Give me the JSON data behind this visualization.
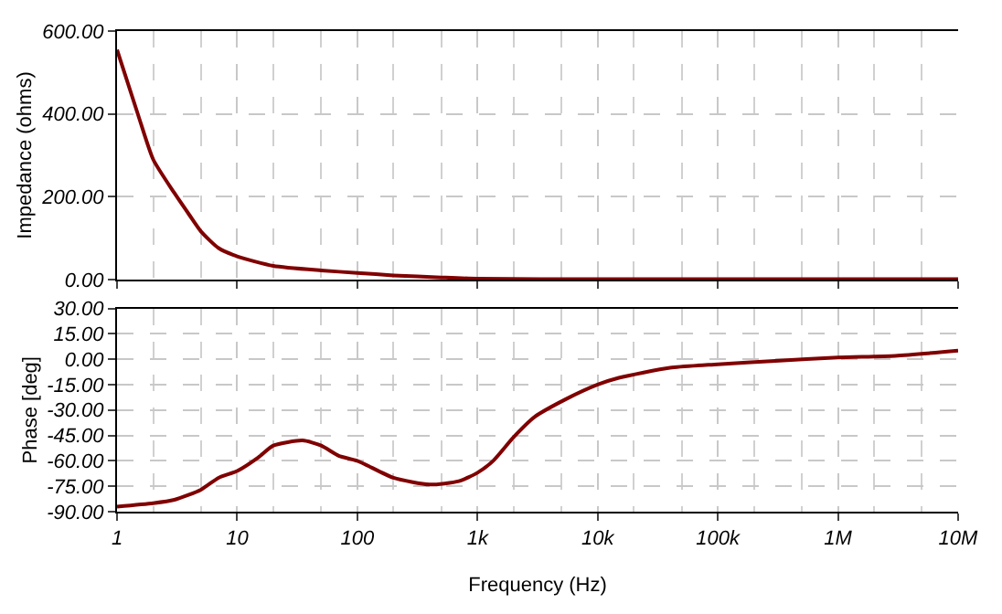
{
  "chart_data": [
    {
      "type": "line",
      "ylabel": "Impedance (ohms)",
      "x": [
        1,
        1.5,
        2,
        3,
        4,
        5,
        7,
        10,
        20,
        50,
        100,
        200,
        500,
        1000,
        10000,
        100000,
        1000000,
        10000000
      ],
      "series": [
        {
          "color": "#800000",
          "values": [
            555,
            397,
            290,
            209,
            156,
            116,
            76,
            56,
            33,
            22,
            16,
            10,
            5,
            2,
            1,
            1,
            1,
            1
          ]
        }
      ],
      "log": "x",
      "xlim": [
        1,
        10000000
      ],
      "ylim": [
        0,
        600
      ],
      "yticks": [
        {
          "value": 0,
          "label": "0.00"
        },
        {
          "value": 200,
          "label": "200.00"
        },
        {
          "value": 400,
          "label": "400.00"
        },
        {
          "value": 600,
          "label": "600.00"
        }
      ],
      "xticks": [
        {
          "value": 1,
          "label": null
        },
        {
          "value": 10,
          "label": null
        },
        {
          "value": 100,
          "label": null
        },
        {
          "value": 1000,
          "label": null
        },
        {
          "value": 10000,
          "label": null
        },
        {
          "value": 100000,
          "label": null
        },
        {
          "value": 1000000,
          "label": null
        },
        {
          "value": 10000000,
          "label": null
        }
      ],
      "tick_labels": "y",
      "grid": true
    },
    {
      "type": "line",
      "ylabel": "Phase [deg]",
      "xlabel": "Frequency (Hz)",
      "x": [
        1,
        2,
        3,
        5,
        7,
        10,
        15,
        20,
        35,
        50,
        70,
        100,
        200,
        400,
        700,
        1000,
        1350,
        2000,
        3000,
        5300,
        10000,
        15000,
        40000,
        100000,
        300000,
        1000000,
        3000000,
        10000000
      ],
      "series": [
        {
          "color": "#800000",
          "values": [
            -87,
            -85,
            -83,
            -77,
            -70,
            -66,
            -58,
            -51,
            -48,
            -51,
            -57,
            -60,
            -70,
            -74,
            -72,
            -67,
            -60,
            -46,
            -34,
            -24,
            -15,
            -11,
            -5,
            -3,
            -1,
            1,
            2,
            5
          ]
        }
      ],
      "log": "x",
      "xlim": [
        1,
        10000000
      ],
      "ylim": [
        -90,
        30
      ],
      "yticks": [
        {
          "value": -90,
          "label": "-90.00"
        },
        {
          "value": -75,
          "label": "-75.00"
        },
        {
          "value": -60,
          "label": "-60.00"
        },
        {
          "value": -45,
          "label": "-45.00"
        },
        {
          "value": -30,
          "label": "-30.00"
        },
        {
          "value": -15,
          "label": "-15.00"
        },
        {
          "value": 0,
          "label": "0.00"
        },
        {
          "value": 15,
          "label": "15.00"
        },
        {
          "value": 30,
          "label": "30.00"
        }
      ],
      "xticks": [
        {
          "value": 1,
          "label": "1"
        },
        {
          "value": 10,
          "label": "10"
        },
        {
          "value": 100,
          "label": "100"
        },
        {
          "value": 1000,
          "label": "1k"
        },
        {
          "value": 10000,
          "label": "10k"
        },
        {
          "value": 100000,
          "label": "100k"
        },
        {
          "value": 1000000,
          "label": "1M"
        },
        {
          "value": 10000000,
          "label": "10M"
        }
      ],
      "grid": true
    }
  ]
}
